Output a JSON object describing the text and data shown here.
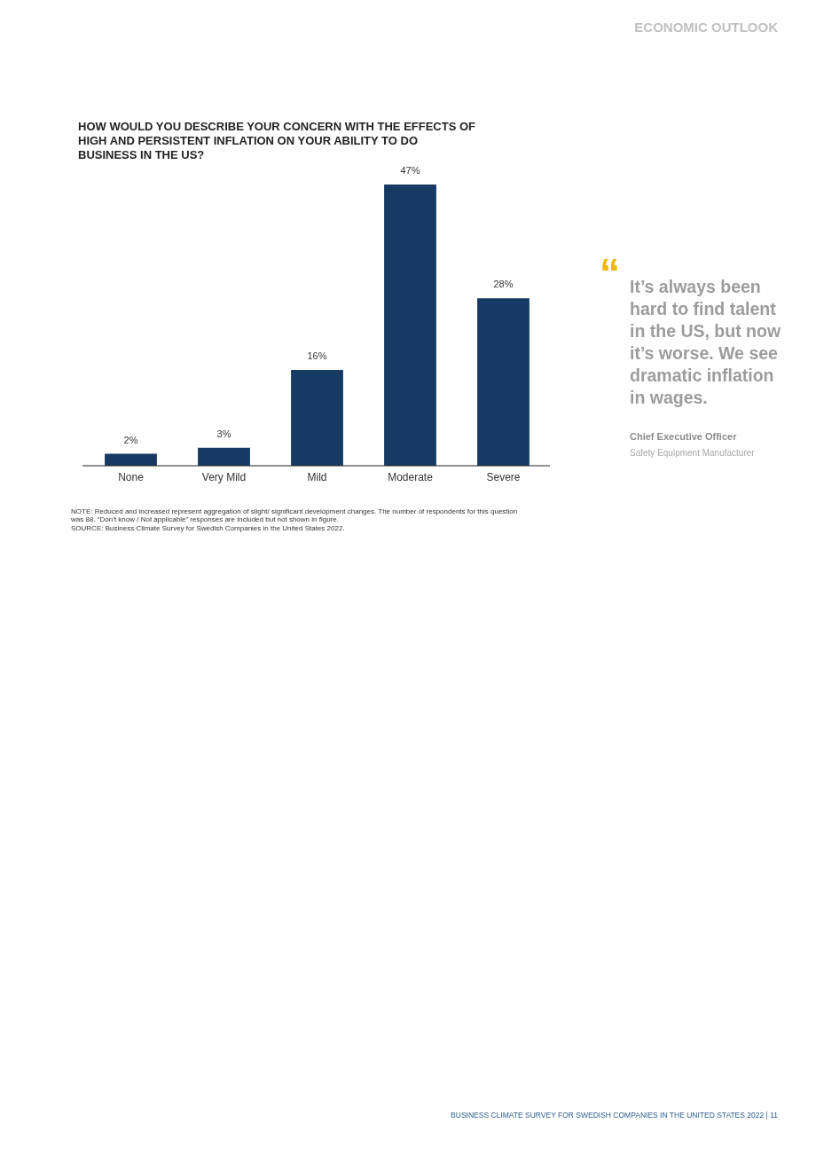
{
  "chart_data": {
    "type": "bar",
    "title": "HOW WOULD YOU DESCRIBE YOUR CONCERN WITH THE EFFECTS OF HIGH AND PERSISTENT INFLATION ON YOUR ABILITY TO DO BUSINESS IN THE US?",
    "categories": [
      "None",
      "Very Mild",
      "Mild",
      "Moderate",
      "Severe"
    ],
    "values": [
      2,
      3,
      16,
      47,
      28
    ],
    "value_labels": [
      "2%",
      "3%",
      "16%",
      "47%",
      "28%"
    ],
    "color": "#163a63",
    "annotations": [
      "ECONOMIC OUTLOOK",
      "“",
      "It’s always been hard to find talent in the US, but now it’s worse. We see dramatic inflation in wages.",
      "Chief Executive Officer",
      "Safety Equipment Manufacturer",
      "NOTE: Reduced and increased represent aggregation of slight/ significant development changes. The number of respondents for this question was 88. “Don’t know / Not applicable” responses are included but not shown in figure.",
      "SOURCE: Business Climate Survey for Swedish Companies in the United States 2022.",
      "BUSINESS CLIMATE SURVEY FOR SWEDISH COMPANIES IN THE UNITED STATES 2022   |  11"
    ]
  }
}
